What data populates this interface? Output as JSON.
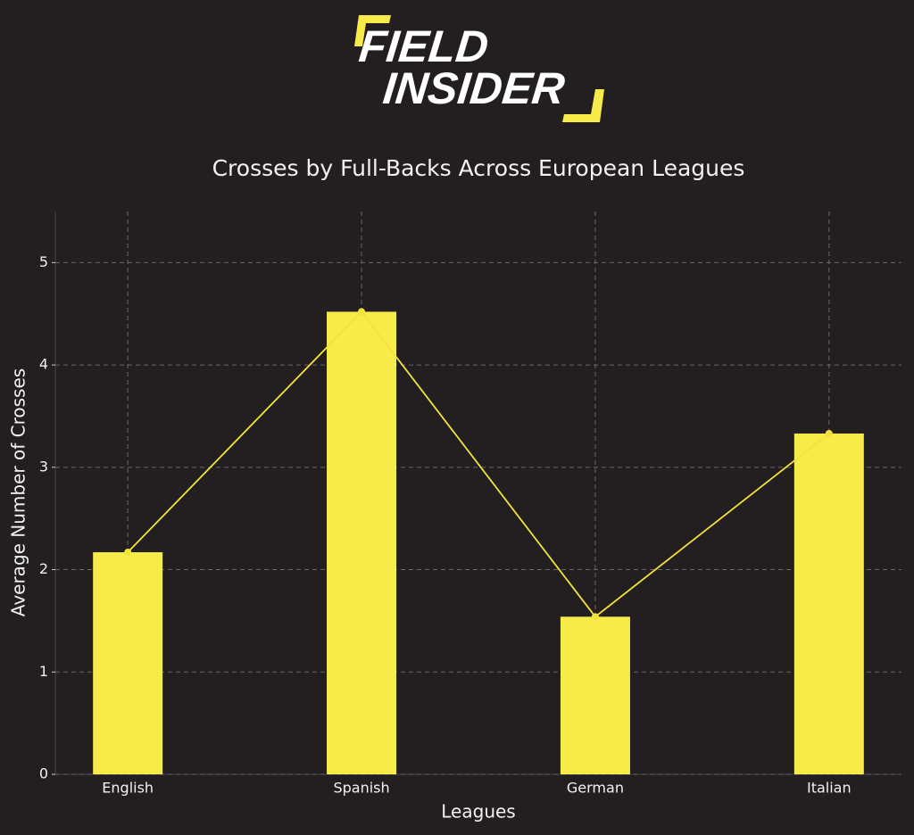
{
  "logo": {
    "line1": "FIELD",
    "line2": "INSIDER"
  },
  "chart_data": {
    "type": "bar",
    "title": "Crosses by Full-Backs Across European Leagues",
    "x_label": "Leagues",
    "y_label": "Average Number of Crosses",
    "categories": [
      "English",
      "Spanish",
      "German",
      "Italian"
    ],
    "values": [
      2.17,
      4.52,
      1.54,
      3.33
    ],
    "color": "#f7eb4a",
    "line_overlay": true,
    "line_color": "#f2e33c",
    "ylim": [
      0,
      5.5
    ],
    "yticks": [
      0,
      1,
      2,
      3,
      4,
      5
    ],
    "grid": true
  }
}
